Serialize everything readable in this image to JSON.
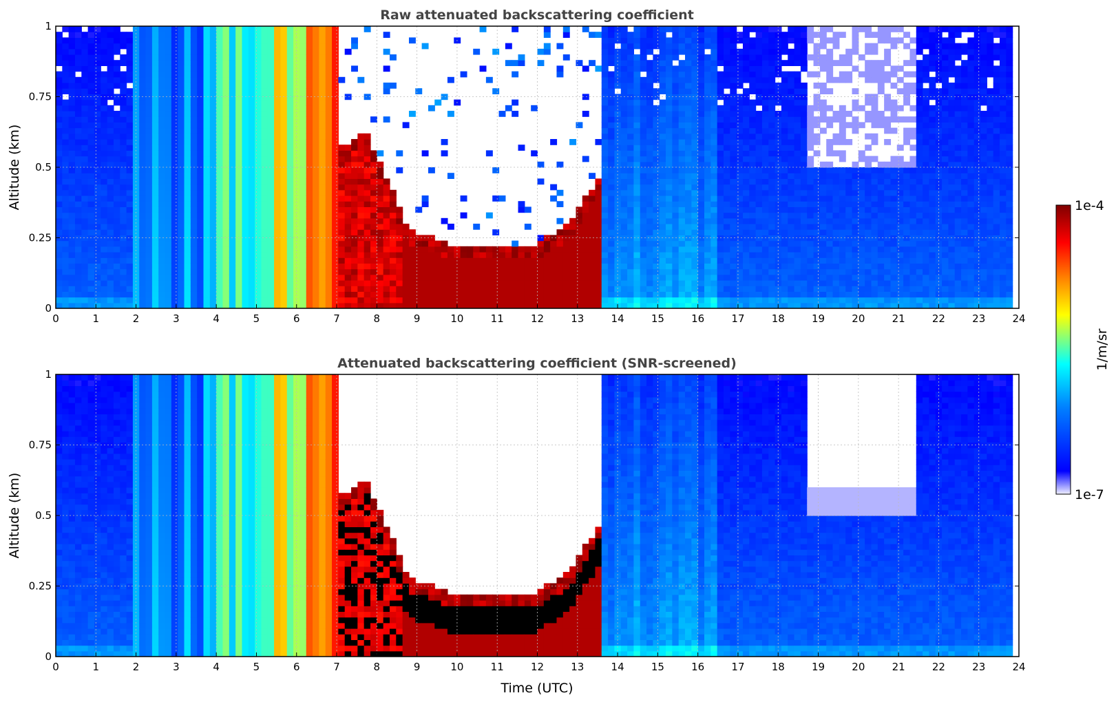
{
  "chart_data": [
    {
      "type": "heatmap",
      "title": "Raw attenuated backscattering coefficient",
      "xlabel": "",
      "ylabel": "Altitude (km)",
      "xlim": [
        0,
        24
      ],
      "ylim": [
        0,
        1
      ],
      "x_ticks": [
        "0",
        "1",
        "2",
        "3",
        "4",
        "5",
        "6",
        "7",
        "8",
        "9",
        "10",
        "11",
        "12",
        "13",
        "14",
        "15",
        "16",
        "17",
        "18",
        "19",
        "20",
        "21",
        "22",
        "23",
        "24"
      ],
      "y_ticks": [
        "0",
        "0.25",
        "0.5",
        "0.75",
        "1"
      ],
      "y_tick_values": [
        0,
        0.25,
        0.5,
        0.75,
        1
      ],
      "grid": true,
      "screened": false,
      "features": {
        "thick_layer_time": [
          7.1,
          13.6
        ],
        "cloud_top_km": [
          0.55,
          0.62,
          0.26,
          0.2,
          0.2,
          0.21,
          0.28,
          0.46
        ],
        "cloud_top_time": [
          7.2,
          7.7,
          8.8,
          10.0,
          11.0,
          12.0,
          12.8,
          13.6
        ],
        "bright_aerosol_time": [
          3.7,
          7.1
        ],
        "clear_sky_noise_time": [
          18.8,
          21.5
        ]
      }
    },
    {
      "type": "heatmap",
      "title": "Attenuated backscattering coefficient (SNR-screened)",
      "xlabel": "Time (UTC)",
      "ylabel": "Altitude (km)",
      "xlim": [
        0,
        24
      ],
      "ylim": [
        0,
        1
      ],
      "x_ticks": [
        "0",
        "1",
        "2",
        "3",
        "4",
        "5",
        "6",
        "7",
        "8",
        "9",
        "10",
        "11",
        "12",
        "13",
        "14",
        "15",
        "16",
        "17",
        "18",
        "19",
        "20",
        "21",
        "22",
        "23",
        "24"
      ],
      "y_ticks": [
        "0",
        "0.25",
        "0.5",
        "0.75",
        "1"
      ],
      "y_tick_values": [
        0,
        0.25,
        0.5,
        0.75,
        1
      ],
      "grid": true,
      "screened": true
    }
  ],
  "colorbar": {
    "label": "1/m/sr",
    "min_label": "1e-7",
    "max_label": "1e-4",
    "scale": "log",
    "vmin": 1e-07,
    "vmax": 0.0001,
    "colormap": [
      "#f0f0ff",
      "#0000ff",
      "#0080ff",
      "#00ffff",
      "#ffff00",
      "#ff8000",
      "#ff0000",
      "#800000"
    ]
  }
}
